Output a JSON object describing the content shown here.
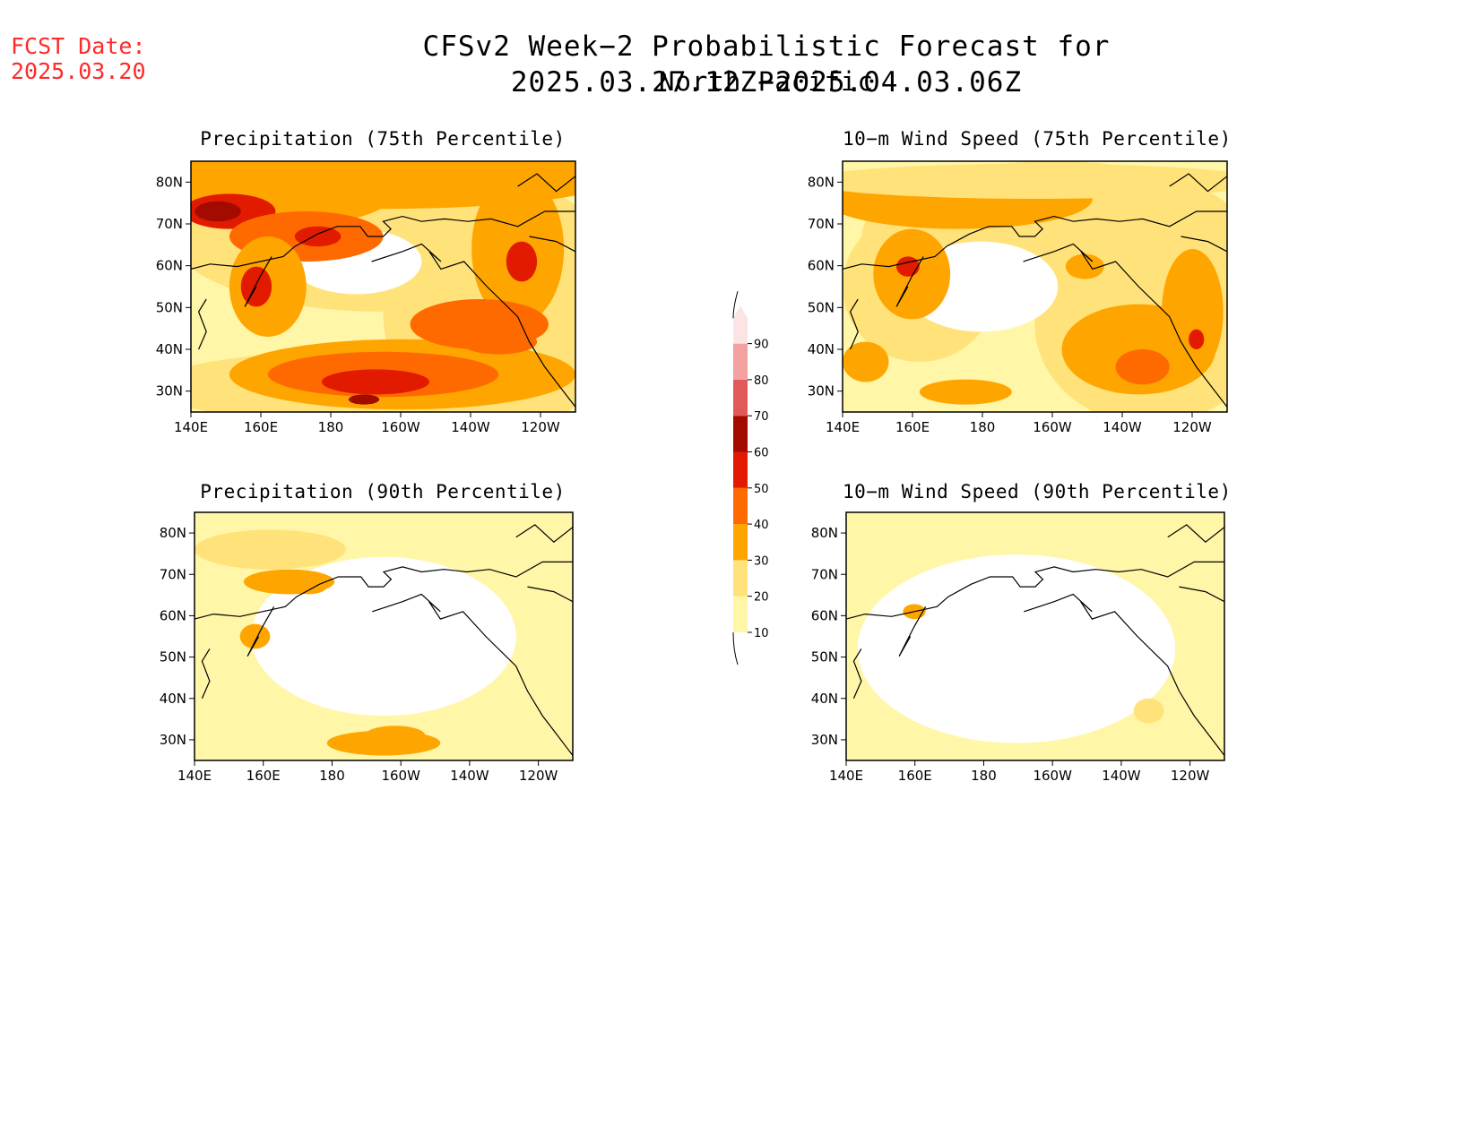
{
  "header": {
    "fcst_label": "FCST Date:",
    "fcst_date": "2025.03.20",
    "title": "CFSv2 Week−2 Probabilistic Forecast for 2025.03.27.12Z−2025.04.03.06Z",
    "subtitle": "North Pacific"
  },
  "panels": [
    {
      "id": "precip-75",
      "title": "Precipitation (75th Percentile)",
      "intensity": "high-precip"
    },
    {
      "id": "wind-75",
      "title": "10−m Wind Speed (75th Percentile)",
      "intensity": "moderate-wind"
    },
    {
      "id": "precip-90",
      "title": "Precipitation (90th Percentile)",
      "intensity": "low-precip"
    },
    {
      "id": "wind-90",
      "title": "10−m Wind Speed (90th Percentile)",
      "intensity": "very-low-wind"
    }
  ],
  "axes": {
    "lat_labels": [
      "80N",
      "70N",
      "60N",
      "50N",
      "40N",
      "30N"
    ],
    "lon_labels": [
      "140E",
      "160E",
      "180",
      "160W",
      "140W",
      "120W"
    ]
  },
  "colorbar": {
    "levels": [
      "10",
      "20",
      "30",
      "40",
      "50",
      "60",
      "70",
      "80",
      "90"
    ],
    "colors": [
      "#ffffff",
      "#fff6a8",
      "#ffe27a",
      "#ffa500",
      "#ff6a00",
      "#e11a00",
      "#a30a00",
      "#e05a5a",
      "#f2a0a0",
      "#fde4e4"
    ]
  }
}
